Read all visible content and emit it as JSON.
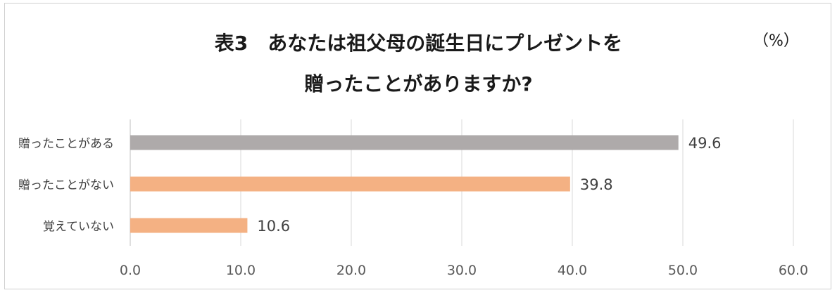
{
  "chart_data": {
    "type": "bar",
    "orientation": "horizontal",
    "title_line1": "表3　あなたは祖父母の誕生日にプレゼントを",
    "title_line2": "贈ったことがありますか?",
    "unit_label": "（%）",
    "categories": [
      "贈ったことがある",
      "贈ったことがない",
      "覚えていない"
    ],
    "values": [
      49.6,
      39.8,
      10.6
    ],
    "value_labels": [
      "49.6",
      "39.8",
      "10.6"
    ],
    "bar_colors": [
      "#aeaaaa",
      "#f4b183",
      "#f4b183"
    ],
    "xlim": [
      0,
      60
    ],
    "x_ticks": [
      0,
      10,
      20,
      30,
      40,
      50,
      60
    ],
    "x_tick_labels": [
      "0.0",
      "10.0",
      "20.0",
      "30.0",
      "40.0",
      "50.0",
      "60.0"
    ],
    "grid": true,
    "legend": "none"
  }
}
